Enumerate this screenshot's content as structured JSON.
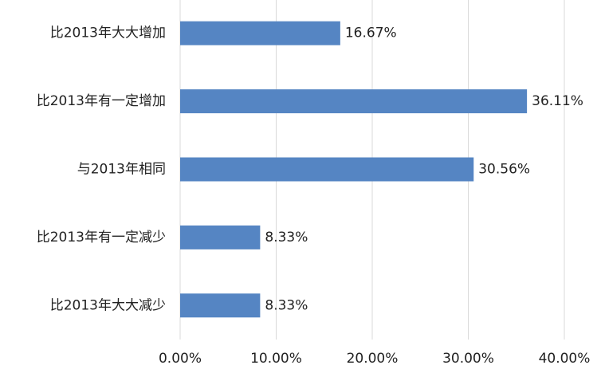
{
  "chart_data": {
    "type": "bar",
    "orientation": "horizontal",
    "categories": [
      "比2013年大大增加",
      "比2013年有一定增加",
      "与2013年相同",
      "比2013年有一定减少",
      "比2013年大大减少"
    ],
    "values": [
      16.67,
      36.11,
      30.56,
      8.33,
      8.33
    ],
    "value_labels": [
      "16.67%",
      "36.11%",
      "30.56%",
      "8.33%",
      "8.33%"
    ],
    "color": "#5585c3",
    "xlim": [
      0,
      40
    ],
    "xticks": [
      {
        "value": 0,
        "label": "0.00%"
      },
      {
        "value": 10,
        "label": "10.00%"
      },
      {
        "value": 20,
        "label": "20.00%"
      },
      {
        "value": 30,
        "label": "30.00%"
      },
      {
        "value": 40,
        "label": "40.00%"
      }
    ],
    "grid": true
  }
}
